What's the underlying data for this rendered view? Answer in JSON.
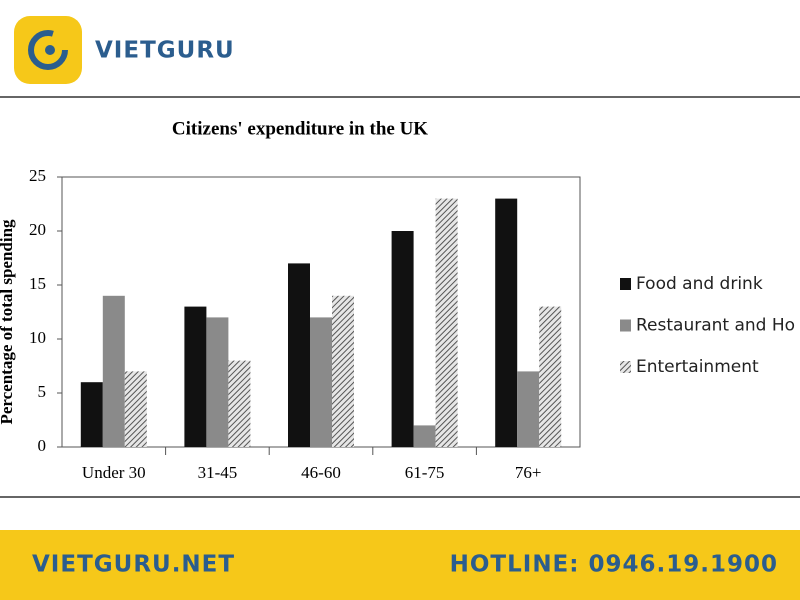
{
  "brand": {
    "name": "VIETGURU",
    "website": "VIETGURU.NET",
    "hotline": "HOTLINE: 0946.19.1900"
  },
  "chart_data": {
    "type": "bar",
    "title": "Citizens' expenditure in the UK",
    "y_label": "Percentage of total spending",
    "categories": [
      "Under 30",
      "31-45",
      "46-60",
      "61-75",
      "76+"
    ],
    "series": [
      {
        "name": "Food and drink",
        "color": "#111111",
        "values": [
          6,
          13,
          17,
          20,
          23
        ]
      },
      {
        "name": "Restaurant and Ho",
        "color": "#8a8a8a",
        "values": [
          14,
          12,
          12,
          2,
          7
        ]
      },
      {
        "name": "Entertainment",
        "color": "#555555",
        "pattern": "hatch",
        "values": [
          7,
          8,
          14,
          23,
          13
        ]
      }
    ],
    "ylim": [
      0,
      25
    ],
    "yticks": [
      0,
      5,
      10,
      15,
      20,
      25
    ],
    "grid": false,
    "legend": "right"
  }
}
